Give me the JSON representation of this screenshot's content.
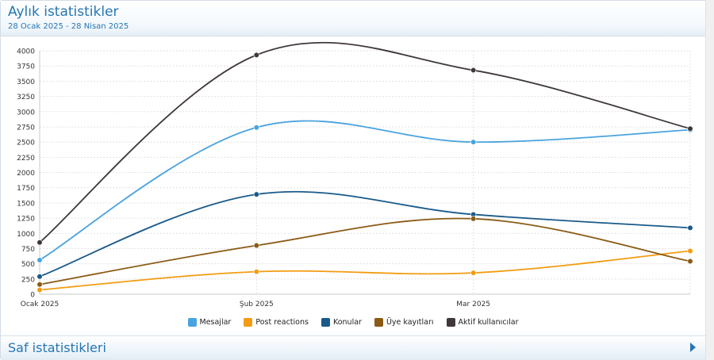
{
  "header": {
    "title": "Aylık istatistikler",
    "subtitle": "28 Ocak 2025 - 28 Nisan 2025"
  },
  "footer": {
    "title": "Saf istatistikleri",
    "arrow_icon": "chevron-right-icon"
  },
  "chart_data": {
    "type": "line",
    "categories": [
      "Ocak 2025",
      "Şub 2025",
      "Mar 2025",
      ""
    ],
    "ylim": [
      0,
      4000
    ],
    "yticks": [
      "0",
      "250",
      "500",
      "750",
      "1000",
      "1250",
      "1500",
      "1750",
      "2000",
      "2250",
      "2500",
      "2750",
      "3000",
      "3250",
      "3500",
      "3750",
      "4000"
    ],
    "grid": true,
    "legend_position": "bottom",
    "series": [
      {
        "name": "Mesajlar",
        "color": "#4aa3df",
        "values": [
          560,
          2740,
          2500,
          2700
        ]
      },
      {
        "name": "Post reactions",
        "color": "#f39c12",
        "values": [
          70,
          370,
          350,
          710
        ]
      },
      {
        "name": "Konular",
        "color": "#1a5a8a",
        "values": [
          290,
          1640,
          1310,
          1090
        ]
      },
      {
        "name": "Üye kayıtları",
        "color": "#8b5a14",
        "values": [
          160,
          800,
          1240,
          540
        ]
      },
      {
        "name": "Aktif kullanıcılar",
        "color": "#403838",
        "values": [
          850,
          3930,
          3680,
          2720
        ]
      }
    ]
  }
}
